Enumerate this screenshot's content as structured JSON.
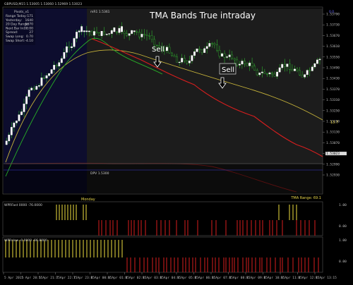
{
  "window": {
    "symbol_line": "GBPUSD,M15  1.53005 1.53060 1.52969 1.53023"
  },
  "info_panel": {
    "header": "Pivots_v1",
    "rows": [
      {
        "label": "Range Today:",
        "value": "171"
      },
      {
        "label": "Yesterday:",
        "value": "1640"
      },
      {
        "label": "20 Day Range:",
        "value": "1670"
      },
      {
        "label": "Next Bar In:",
        "value": "08:00"
      },
      {
        "label": "Spread:",
        "value": "27"
      },
      {
        "label": "Swap Long:",
        "value": "0.70"
      },
      {
        "label": "Swap Short:",
        "value": "-4.10"
      }
    ]
  },
  "chart": {
    "title": "TMA Bands True intraday",
    "mr_label": "mR1  1.5361",
    "dpv_label": "DPV  1.5300",
    "monday_label": "Monday",
    "tma_range": "TMA Range: 69.1",
    "right_marker": "13.7",
    "sell_labels": [
      "Sell",
      "Sell"
    ],
    "top_right_tag": "0.0"
  },
  "price_axis": [
    "1.53790",
    "1.53730",
    "1.53670",
    "1.53610",
    "1.53550",
    "1.53490",
    "1.53430",
    "1.53370",
    "1.53310",
    "1.53250",
    "1.53190",
    "1.53130",
    "1.53070",
    "1.53023",
    "1.52990",
    "1.52930"
  ],
  "indicator1": {
    "label": "WPRFast 0000 -76.0000",
    "axis": [
      "1.00",
      "0.00"
    ]
  },
  "indicator2": {
    "label": "WPRslow -0.0000 -66.8000",
    "axis": [
      "1.00",
      "0.00"
    ]
  },
  "time_axis": [
    "5 Apr 2015",
    "5 Apr 20:15",
    "5 Apr 21:15",
    "7 Apr 22:15",
    "7 Apr 23:15",
    "8 Apr 00:15",
    "8 Apr 01:15",
    "8 Apr 02:15",
    "8 Apr 03:15",
    "8 Apr 04:15",
    "8 Apr 05:15",
    "8 Apr 06:15",
    "8 Apr 07:15",
    "8 Apr 08:15",
    "8 Apr 09:15",
    "8 Apr 10:15",
    "8 Apr 11:15",
    "8 Apr 12:15",
    "8 Apr 13:15"
  ],
  "colors": {
    "background": "#000000",
    "night_zone": "#0d0d2e",
    "day_zone": "#1c1c1c",
    "bull_candle": "#ffffff",
    "bear_candle": "#1a1a1a",
    "wick": "#2fb52f",
    "tma_red": "#d81e1e",
    "tma_yellow": "#c9b53a",
    "tma_green": "#27b027",
    "dark_red_band": "#5a1010",
    "hist_yellow": "#f0e040",
    "hist_red": "#d81e1e"
  }
}
